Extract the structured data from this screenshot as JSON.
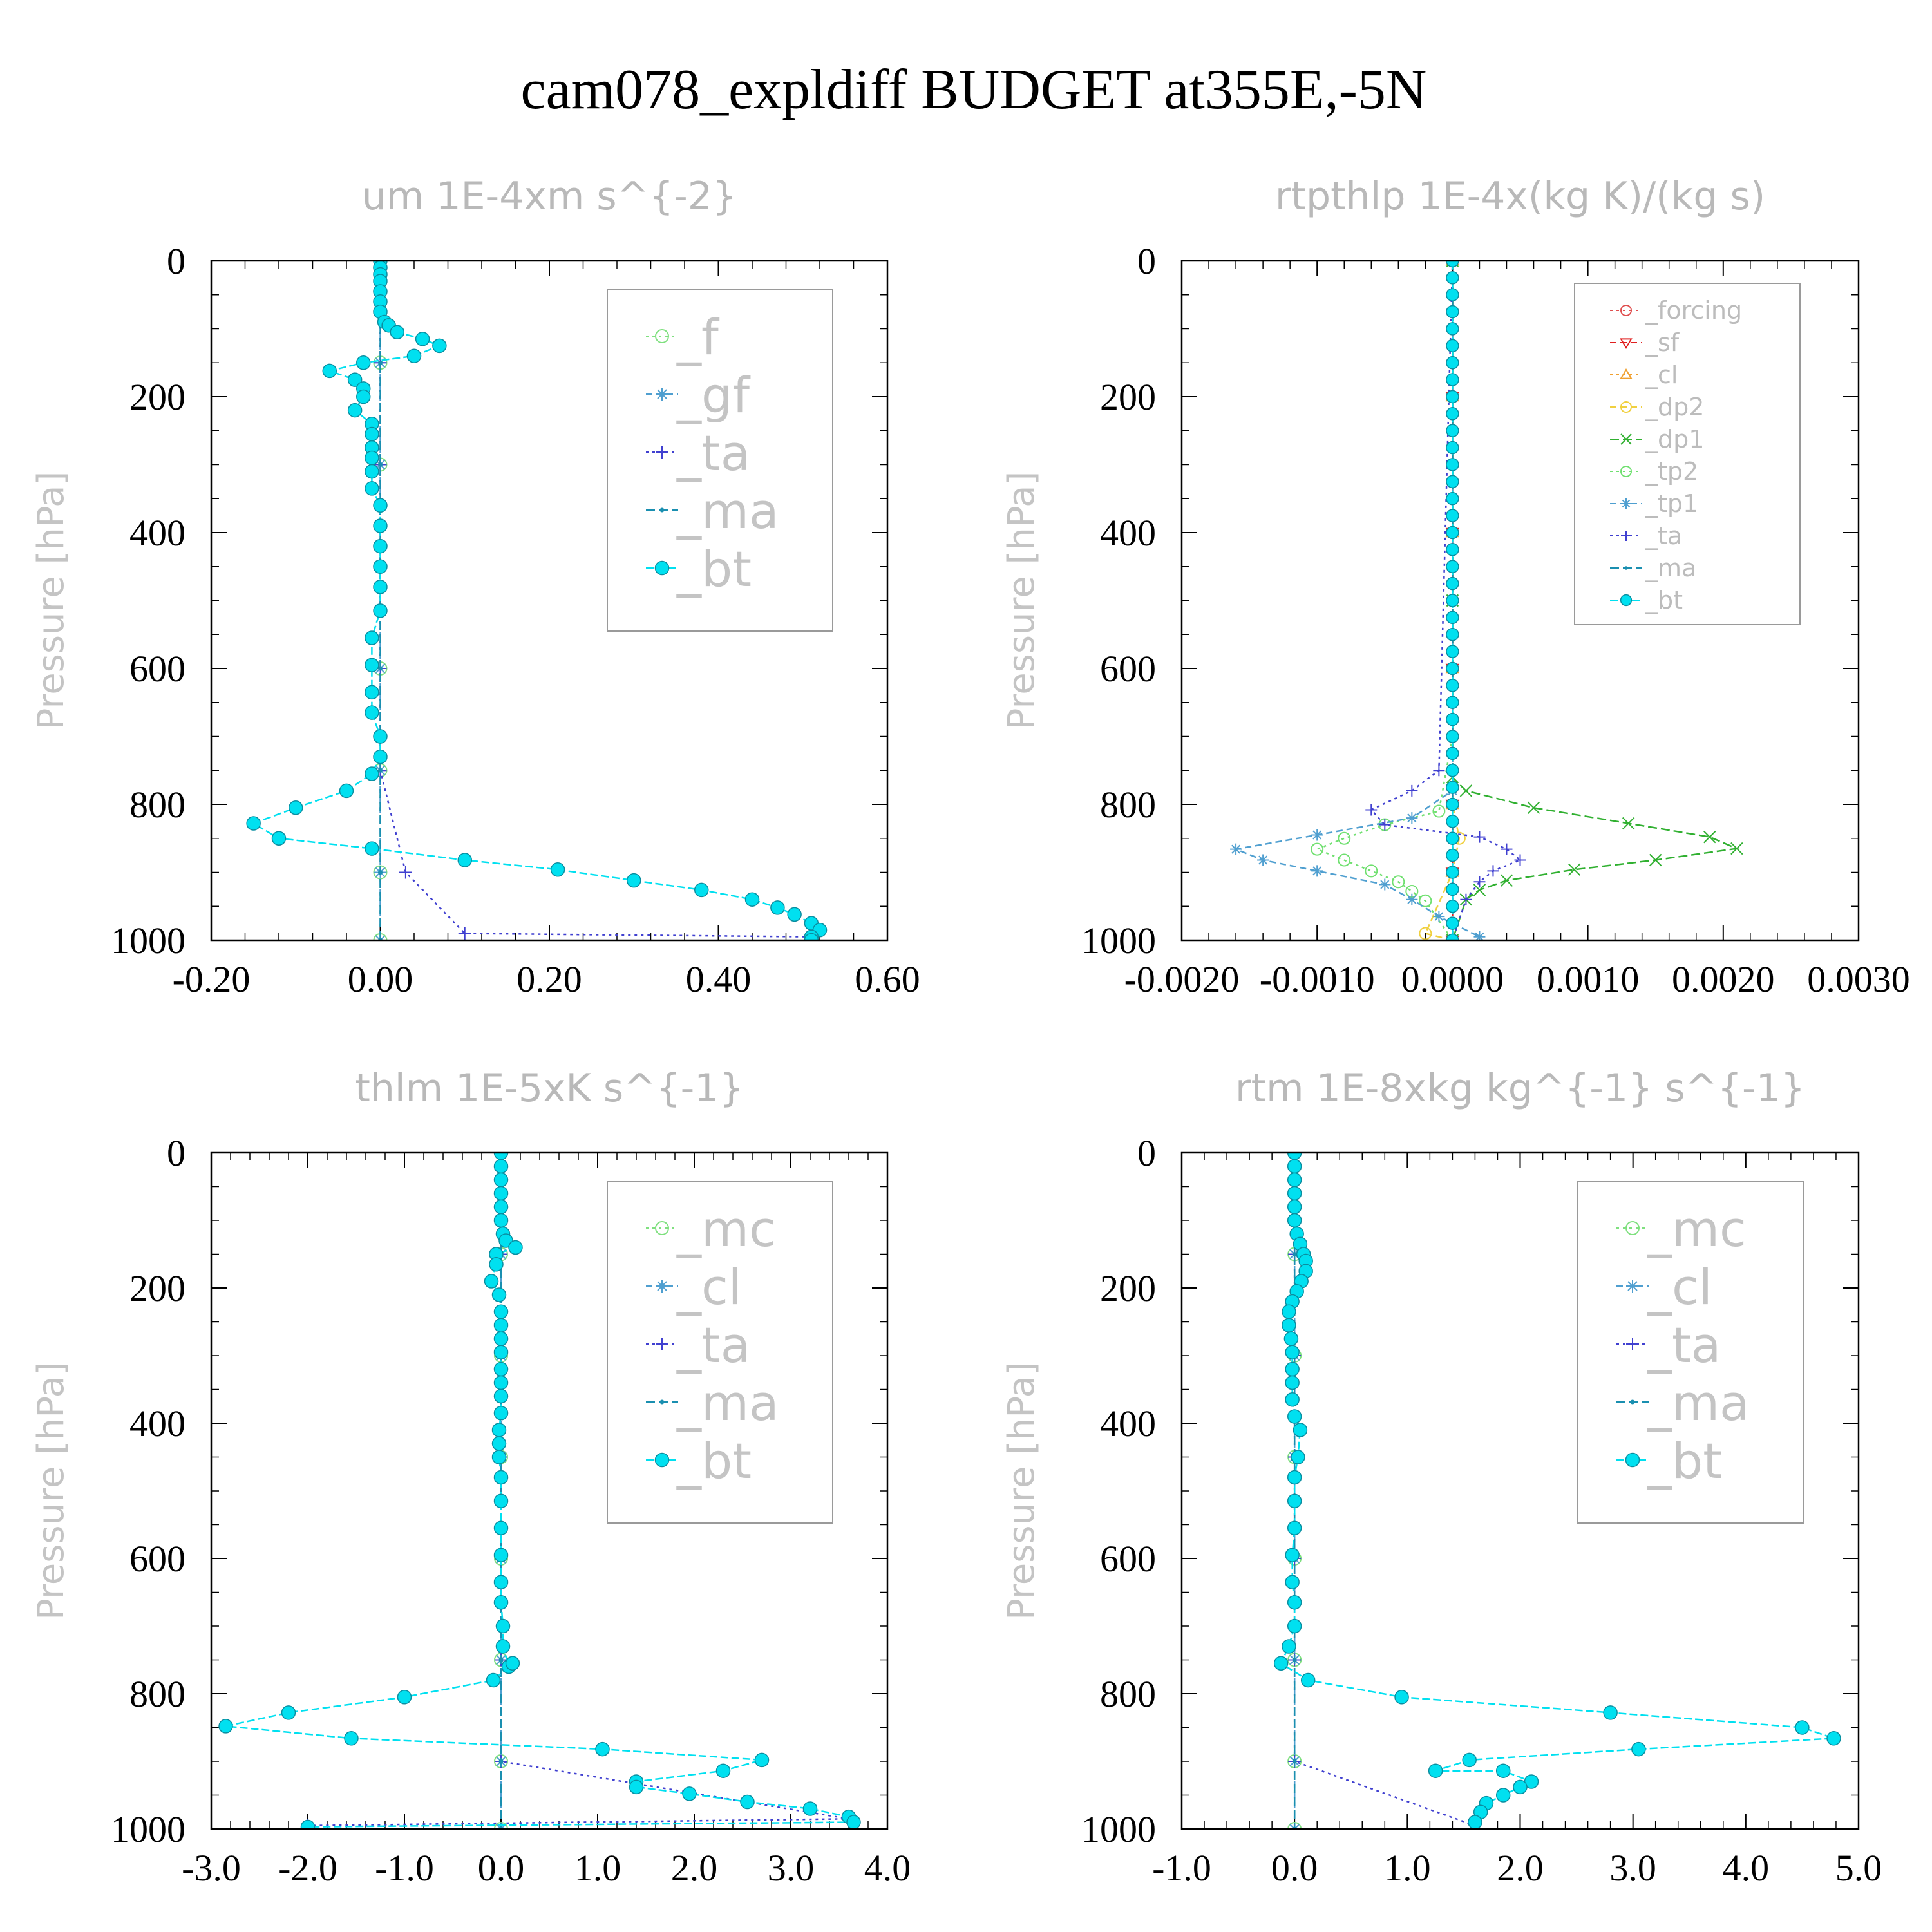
{
  "title": "cam078_expldiff  BUDGET at355E,-5N",
  "chart_data": [
    {
      "type": "line",
      "title": "um  1E-4xm s^{-2}",
      "ylabel": "Pressure [hPa]",
      "ylim": [
        1000,
        0
      ],
      "yticks": [
        "0",
        "200",
        "400",
        "600",
        "800",
        "1000"
      ],
      "xlim": [
        -0.2,
        0.6
      ],
      "xticks": [
        "-0.20",
        "0.00",
        "0.20",
        "0.40",
        "0.60"
      ],
      "legend_size": "big",
      "legend_position": "top-right",
      "series": [
        {
          "name": "_f",
          "color": "#7fe07f",
          "marker": "circle-open",
          "dash": "4,6",
          "x": [
            0,
            0,
            0,
            0,
            0,
            0,
            0,
            0
          ],
          "y": [
            0,
            150,
            300,
            450,
            600,
            750,
            900,
            1000
          ]
        },
        {
          "name": "_gf",
          "color": "#4f9fd0",
          "marker": "asterisk",
          "dash": "10,6",
          "x": [
            0,
            0,
            0,
            0,
            0,
            0,
            0,
            0
          ],
          "y": [
            0,
            150,
            300,
            450,
            600,
            750,
            900,
            1000
          ]
        },
        {
          "name": "_ta",
          "color": "#4040d0",
          "marker": "plus",
          "dash": "4,6",
          "x": [
            0,
            0,
            0,
            0,
            0,
            0,
            0.03,
            0.1,
            0.51
          ],
          "y": [
            0,
            150,
            300,
            450,
            600,
            750,
            900,
            990,
            995
          ]
        },
        {
          "name": "_ma",
          "color": "#1a8fb0",
          "marker": "dot",
          "dash": "14,6",
          "x": [
            0,
            0,
            0,
            0,
            0,
            0,
            0,
            0
          ],
          "y": [
            0,
            150,
            300,
            450,
            600,
            750,
            900,
            1000
          ]
        },
        {
          "name": "_bt",
          "color": "#00e0f0",
          "marker": "filled",
          "dash": "12,5",
          "x": [
            0,
            0,
            0,
            0,
            0,
            0,
            0,
            0.005,
            0.01,
            0.02,
            0.05,
            0.07,
            0.04,
            -0.02,
            -0.06,
            -0.03,
            -0.02,
            -0.02,
            -0.03,
            -0.01,
            -0.01,
            -0.01,
            -0.01,
            -0.01,
            -0.01,
            0,
            0,
            0,
            0,
            0,
            0,
            -0.01,
            -0.01,
            -0.01,
            -0.01,
            0,
            0,
            -0.01,
            -0.04,
            -0.1,
            -0.15,
            -0.12,
            -0.01,
            0.1,
            0.21,
            0.3,
            0.38,
            0.44,
            0.47,
            0.49,
            0.51,
            0.52,
            0.51,
            0.51
          ],
          "y": [
            0,
            10,
            20,
            30,
            45,
            60,
            75,
            90,
            95,
            105,
            115,
            125,
            140,
            150,
            162,
            175,
            188,
            200,
            220,
            240,
            255,
            275,
            290,
            310,
            335,
            360,
            390,
            420,
            450,
            480,
            515,
            555,
            595,
            635,
            665,
            700,
            730,
            755,
            780,
            805,
            828,
            850,
            865,
            882,
            896,
            912,
            926,
            940,
            952,
            962,
            975,
            985,
            995,
            1000
          ]
        }
      ]
    },
    {
      "type": "line",
      "title": "rtpthlp  1E-4x(kg K)/(kg s)",
      "ylabel": "Pressure [hPa]",
      "ylim": [
        1000,
        0
      ],
      "yticks": [
        "0",
        "200",
        "400",
        "600",
        "800",
        "1000"
      ],
      "xlim": [
        -0.002,
        0.003
      ],
      "xticks": [
        "-0.0020",
        "-0.0010",
        "0.0000",
        "0.0010",
        "0.0020",
        "0.0030"
      ],
      "legend_size": "small",
      "legend_position": "top-right",
      "series": [
        {
          "name": "_forcing",
          "color": "#e05050",
          "marker": "circle-open",
          "dash": "4,6",
          "x": [
            0,
            0,
            0,
            0,
            0,
            0,
            0
          ],
          "y": [
            0,
            200,
            400,
            600,
            800,
            900,
            1000
          ]
        },
        {
          "name": "_sf",
          "color": "#e02020",
          "marker": "tri-down",
          "dash": "10,6",
          "x": [
            0,
            0,
            0,
            0,
            0,
            0,
            0
          ],
          "y": [
            0,
            200,
            400,
            600,
            800,
            900,
            1000
          ]
        },
        {
          "name": "_cl",
          "color": "#f0a030",
          "marker": "tri-up",
          "dash": "4,6",
          "x": [
            0,
            0,
            0,
            0,
            0,
            0,
            0
          ],
          "y": [
            0,
            200,
            400,
            600,
            800,
            900,
            1000
          ]
        },
        {
          "name": "_dp2",
          "color": "#f0d040",
          "marker": "circle-open",
          "dash": "10,6",
          "x": [
            0,
            0,
            0,
            0,
            0,
            5e-05,
            0,
            -0.0002,
            0
          ],
          "y": [
            0,
            200,
            400,
            600,
            800,
            850,
            900,
            990,
            1000
          ]
        },
        {
          "name": "_dp1",
          "color": "#30b030",
          "marker": "x",
          "dash": "14,6",
          "x": [
            0,
            0,
            0,
            0.0001,
            0.0006,
            0.0013,
            0.0019,
            0.0021,
            0.0015,
            0.0009,
            0.0004,
            0.0002,
            0.0001,
            0
          ],
          "y": [
            0,
            500,
            760,
            780,
            805,
            828,
            848,
            865,
            882,
            896,
            912,
            926,
            940,
            1000
          ]
        },
        {
          "name": "_tp2",
          "color": "#70e070",
          "marker": "circle-open",
          "dash": "4,6",
          "x": [
            0,
            0,
            -0.0001,
            -0.0005,
            -0.0008,
            -0.001,
            -0.0008,
            -0.0006,
            -0.0004,
            -0.0003,
            -0.0002,
            0
          ],
          "y": [
            0,
            700,
            810,
            830,
            850,
            866,
            882,
            898,
            914,
            928,
            942,
            1000
          ]
        },
        {
          "name": "_tp1",
          "color": "#4f9fd0",
          "marker": "asterisk",
          "dash": "10,6",
          "x": [
            0,
            0,
            -0.0003,
            -0.001,
            -0.0016,
            -0.0014,
            -0.001,
            -0.0005,
            -0.0003,
            -0.0001,
            0.0002
          ],
          "y": [
            0,
            780,
            820,
            845,
            866,
            882,
            898,
            918,
            940,
            965,
            995
          ]
        },
        {
          "name": "_ta",
          "color": "#4040d0",
          "marker": "plus",
          "dash": "4,6",
          "x": [
            0,
            -0.0001,
            -0.0003,
            -0.0006,
            -0.0005,
            0.0002,
            0.0004,
            0.0005,
            0.0003,
            0.0002,
            0.0001,
            0
          ],
          "y": [
            0,
            750,
            780,
            808,
            830,
            848,
            866,
            882,
            898,
            914,
            940,
            1000
          ]
        },
        {
          "name": "_ma",
          "color": "#1a8fb0",
          "marker": "dot",
          "dash": "14,6",
          "x": [
            0,
            0,
            0,
            0,
            0,
            0,
            0
          ],
          "y": [
            0,
            200,
            400,
            600,
            800,
            900,
            1000
          ]
        },
        {
          "name": "_bt",
          "color": "#00e0f0",
          "marker": "filled",
          "dash": "12,5",
          "x": [
            0,
            0,
            0,
            0,
            0,
            0,
            0,
            0,
            0,
            0,
            0,
            0,
            0,
            0,
            0,
            0,
            0,
            0,
            0,
            0,
            0,
            0,
            0,
            0,
            0,
            0,
            0,
            0,
            0,
            0,
            0,
            0,
            0,
            0,
            0,
            0,
            0,
            0,
            0,
            0,
            0
          ],
          "y": [
            0,
            25,
            50,
            75,
            100,
            125,
            150,
            175,
            200,
            225,
            250,
            275,
            300,
            325,
            350,
            375,
            400,
            425,
            450,
            475,
            500,
            525,
            550,
            575,
            600,
            625,
            650,
            675,
            700,
            725,
            750,
            775,
            800,
            825,
            850,
            875,
            900,
            925,
            950,
            975,
            1000
          ]
        }
      ]
    },
    {
      "type": "line",
      "title": "thlm  1E-5xK s^{-1}",
      "ylabel": "Pressure [hPa]",
      "ylim": [
        1000,
        0
      ],
      "yticks": [
        "0",
        "200",
        "400",
        "600",
        "800",
        "1000"
      ],
      "xlim": [
        -3.0,
        4.0
      ],
      "xticks": [
        "-3.0",
        "-2.0",
        "-1.0",
        "0.0",
        "1.0",
        "2.0",
        "3.0",
        "4.0"
      ],
      "legend_size": "big",
      "legend_position": "top-right",
      "series": [
        {
          "name": "_mc",
          "color": "#7fe07f",
          "marker": "circle-open",
          "dash": "4,6",
          "x": [
            0,
            0,
            0,
            0,
            0,
            0,
            0,
            0
          ],
          "y": [
            0,
            150,
            300,
            450,
            600,
            750,
            900,
            1000
          ]
        },
        {
          "name": "_cl",
          "color": "#4f9fd0",
          "marker": "asterisk",
          "dash": "10,6",
          "x": [
            0,
            0,
            0,
            0,
            0,
            0,
            0,
            0
          ],
          "y": [
            0,
            150,
            300,
            450,
            600,
            750,
            900,
            1000
          ]
        },
        {
          "name": "_ta",
          "color": "#4040d0",
          "marker": "plus",
          "dash": "4,6",
          "x": [
            0,
            0,
            0,
            0,
            0,
            0,
            0,
            3.6,
            -2.0
          ],
          "y": [
            0,
            150,
            300,
            450,
            600,
            750,
            900,
            985,
            995
          ]
        },
        {
          "name": "_ma",
          "color": "#1a8fb0",
          "marker": "dot",
          "dash": "14,6",
          "x": [
            0,
            0,
            0,
            0,
            0,
            0,
            0,
            0
          ],
          "y": [
            0,
            150,
            300,
            450,
            600,
            750,
            900,
            1000
          ]
        },
        {
          "name": "_bt",
          "color": "#00e0f0",
          "marker": "filled",
          "dash": "12,5",
          "x": [
            0,
            0,
            0,
            0,
            0,
            0,
            0.02,
            0.05,
            0.15,
            -0.05,
            -0.05,
            -0.1,
            -0.02,
            0,
            0,
            0,
            0,
            0,
            0,
            0,
            0,
            -0.02,
            -0.02,
            -0.02,
            0,
            0,
            0,
            0,
            0,
            0,
            0.02,
            0.02,
            0.08,
            0.12,
            -0.08,
            -1.0,
            -2.2,
            -2.85,
            -1.55,
            1.05,
            2.7,
            2.3,
            1.4,
            1.4,
            1.95,
            2.55,
            3.2,
            3.6,
            3.65,
            -2.0
          ],
          "y": [
            0,
            20,
            40,
            60,
            80,
            100,
            120,
            130,
            140,
            150,
            165,
            190,
            210,
            235,
            255,
            275,
            295,
            320,
            340,
            360,
            385,
            410,
            430,
            450,
            480,
            515,
            555,
            595,
            635,
            665,
            700,
            730,
            760,
            755,
            780,
            805,
            828,
            848,
            866,
            882,
            898,
            914,
            930,
            938,
            948,
            960,
            970,
            982,
            990,
            997
          ]
        }
      ]
    },
    {
      "type": "line",
      "title": "rtm  1E-8xkg kg^{-1} s^{-1}",
      "ylabel": "Pressure [hPa]",
      "ylim": [
        1000,
        0
      ],
      "yticks": [
        "0",
        "200",
        "400",
        "600",
        "800",
        "1000"
      ],
      "xlim": [
        -1.0,
        5.0
      ],
      "xticks": [
        "-1.0",
        "0.0",
        "1.0",
        "2.0",
        "3.0",
        "4.0",
        "5.0"
      ],
      "legend_size": "big",
      "legend_position": "top-right",
      "series": [
        {
          "name": "_mc",
          "color": "#7fe07f",
          "marker": "circle-open",
          "dash": "4,6",
          "x": [
            0,
            0,
            0,
            0,
            0,
            0,
            0,
            0
          ],
          "y": [
            0,
            150,
            300,
            450,
            600,
            750,
            900,
            1000
          ]
        },
        {
          "name": "_cl",
          "color": "#4f9fd0",
          "marker": "asterisk",
          "dash": "10,6",
          "x": [
            0,
            0,
            0,
            0,
            0,
            0,
            0,
            0
          ],
          "y": [
            0,
            150,
            300,
            450,
            600,
            750,
            900,
            1000
          ]
        },
        {
          "name": "_ta",
          "color": "#4040d0",
          "marker": "plus",
          "dash": "4,6",
          "x": [
            0,
            0,
            0,
            0,
            0,
            0,
            0,
            1.6
          ],
          "y": [
            0,
            150,
            300,
            450,
            600,
            750,
            900,
            995
          ]
        },
        {
          "name": "_ma",
          "color": "#1a8fb0",
          "marker": "dot",
          "dash": "14,6",
          "x": [
            0,
            0,
            0,
            0,
            0,
            0,
            0,
            0
          ],
          "y": [
            0,
            150,
            300,
            450,
            600,
            750,
            900,
            1000
          ]
        },
        {
          "name": "_bt",
          "color": "#00e0f0",
          "marker": "filled",
          "dash": "12,5",
          "x": [
            0,
            0,
            0,
            0,
            0,
            0,
            0.02,
            0.05,
            0.08,
            0.1,
            0.1,
            0.06,
            0.02,
            -0.02,
            -0.05,
            -0.05,
            -0.03,
            -0.02,
            -0.02,
            -0.02,
            -0.02,
            0,
            0.05,
            0.03,
            0,
            0,
            0,
            -0.02,
            -0.02,
            0,
            0,
            -0.05,
            -0.12,
            0.12,
            0.95,
            2.8,
            4.5,
            4.78,
            3.05,
            1.55,
            1.25,
            1.85,
            2.1,
            2.0,
            1.85,
            1.7,
            1.65,
            1.6
          ],
          "y": [
            0,
            20,
            40,
            60,
            80,
            100,
            120,
            135,
            150,
            160,
            175,
            190,
            205,
            220,
            235,
            255,
            275,
            295,
            320,
            340,
            365,
            390,
            410,
            450,
            480,
            515,
            555,
            595,
            635,
            665,
            700,
            730,
            755,
            780,
            805,
            828,
            850,
            866,
            882,
            898,
            914,
            914,
            930,
            938,
            950,
            962,
            975,
            990
          ]
        }
      ]
    }
  ]
}
